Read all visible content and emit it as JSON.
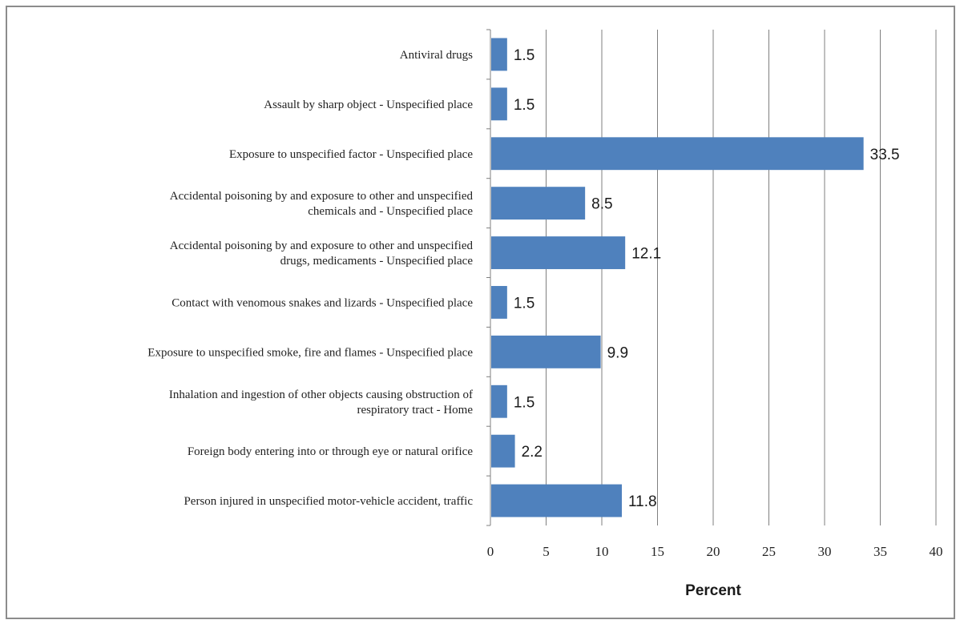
{
  "chart_data": {
    "type": "bar",
    "orientation": "horizontal",
    "categories": [
      "Antiviral drugs",
      "Assault by sharp object - Unspecified place",
      "Exposure to unspecified factor - Unspecified place",
      "Accidental poisoning by and exposure to other and unspecified chemicals and - Unspecified place",
      "Accidental poisoning by and exposure to other and unspecified drugs, medicaments - Unspecified place",
      "Contact with venomous snakes and lizards - Unspecified place",
      "Exposure to unspecified smoke, fire and flames - Unspecified place",
      "Inhalation and ingestion of other objects causing obstruction of respiratory tract - Home",
      "Foreign body entering into or through eye or natural orifice",
      "Person injured in unspecified motor-vehicle accident, traffic"
    ],
    "category_lines": [
      [
        "Antiviral drugs"
      ],
      [
        "Assault by sharp object - Unspecified place"
      ],
      [
        "Exposure to unspecified factor - Unspecified place"
      ],
      [
        "Accidental poisoning by and exposure to other and unspecified",
        "chemicals and - Unspecified place"
      ],
      [
        "Accidental poisoning by and exposure to other and unspecified",
        "drugs, medicaments - Unspecified place"
      ],
      [
        "Contact with venomous snakes and lizards - Unspecified place"
      ],
      [
        "Exposure to unspecified smoke, fire and flames - Unspecified place"
      ],
      [
        "Inhalation and ingestion of other objects causing obstruction of",
        "respiratory tract - Home"
      ],
      [
        "Foreign body entering into or through eye or natural orifice"
      ],
      [
        "Person injured in unspecified motor-vehicle accident, traffic"
      ]
    ],
    "values": [
      1.5,
      1.5,
      33.5,
      8.5,
      12.1,
      1.5,
      9.9,
      1.5,
      2.2,
      11.8
    ],
    "value_labels": [
      "1.5",
      "1.5",
      "33.5",
      "8.5",
      "12.1",
      "1.5",
      "9.9",
      "1.5",
      "2.2",
      "11.8"
    ],
    "xlabel": "Percent",
    "ylabel": "",
    "xlim": [
      0,
      40
    ],
    "xticks": [
      0,
      5,
      10,
      15,
      20,
      25,
      30,
      35,
      40
    ],
    "grid": "vertical",
    "bar_color": "#4f81bd",
    "grid_color": "#7f7f7f"
  }
}
